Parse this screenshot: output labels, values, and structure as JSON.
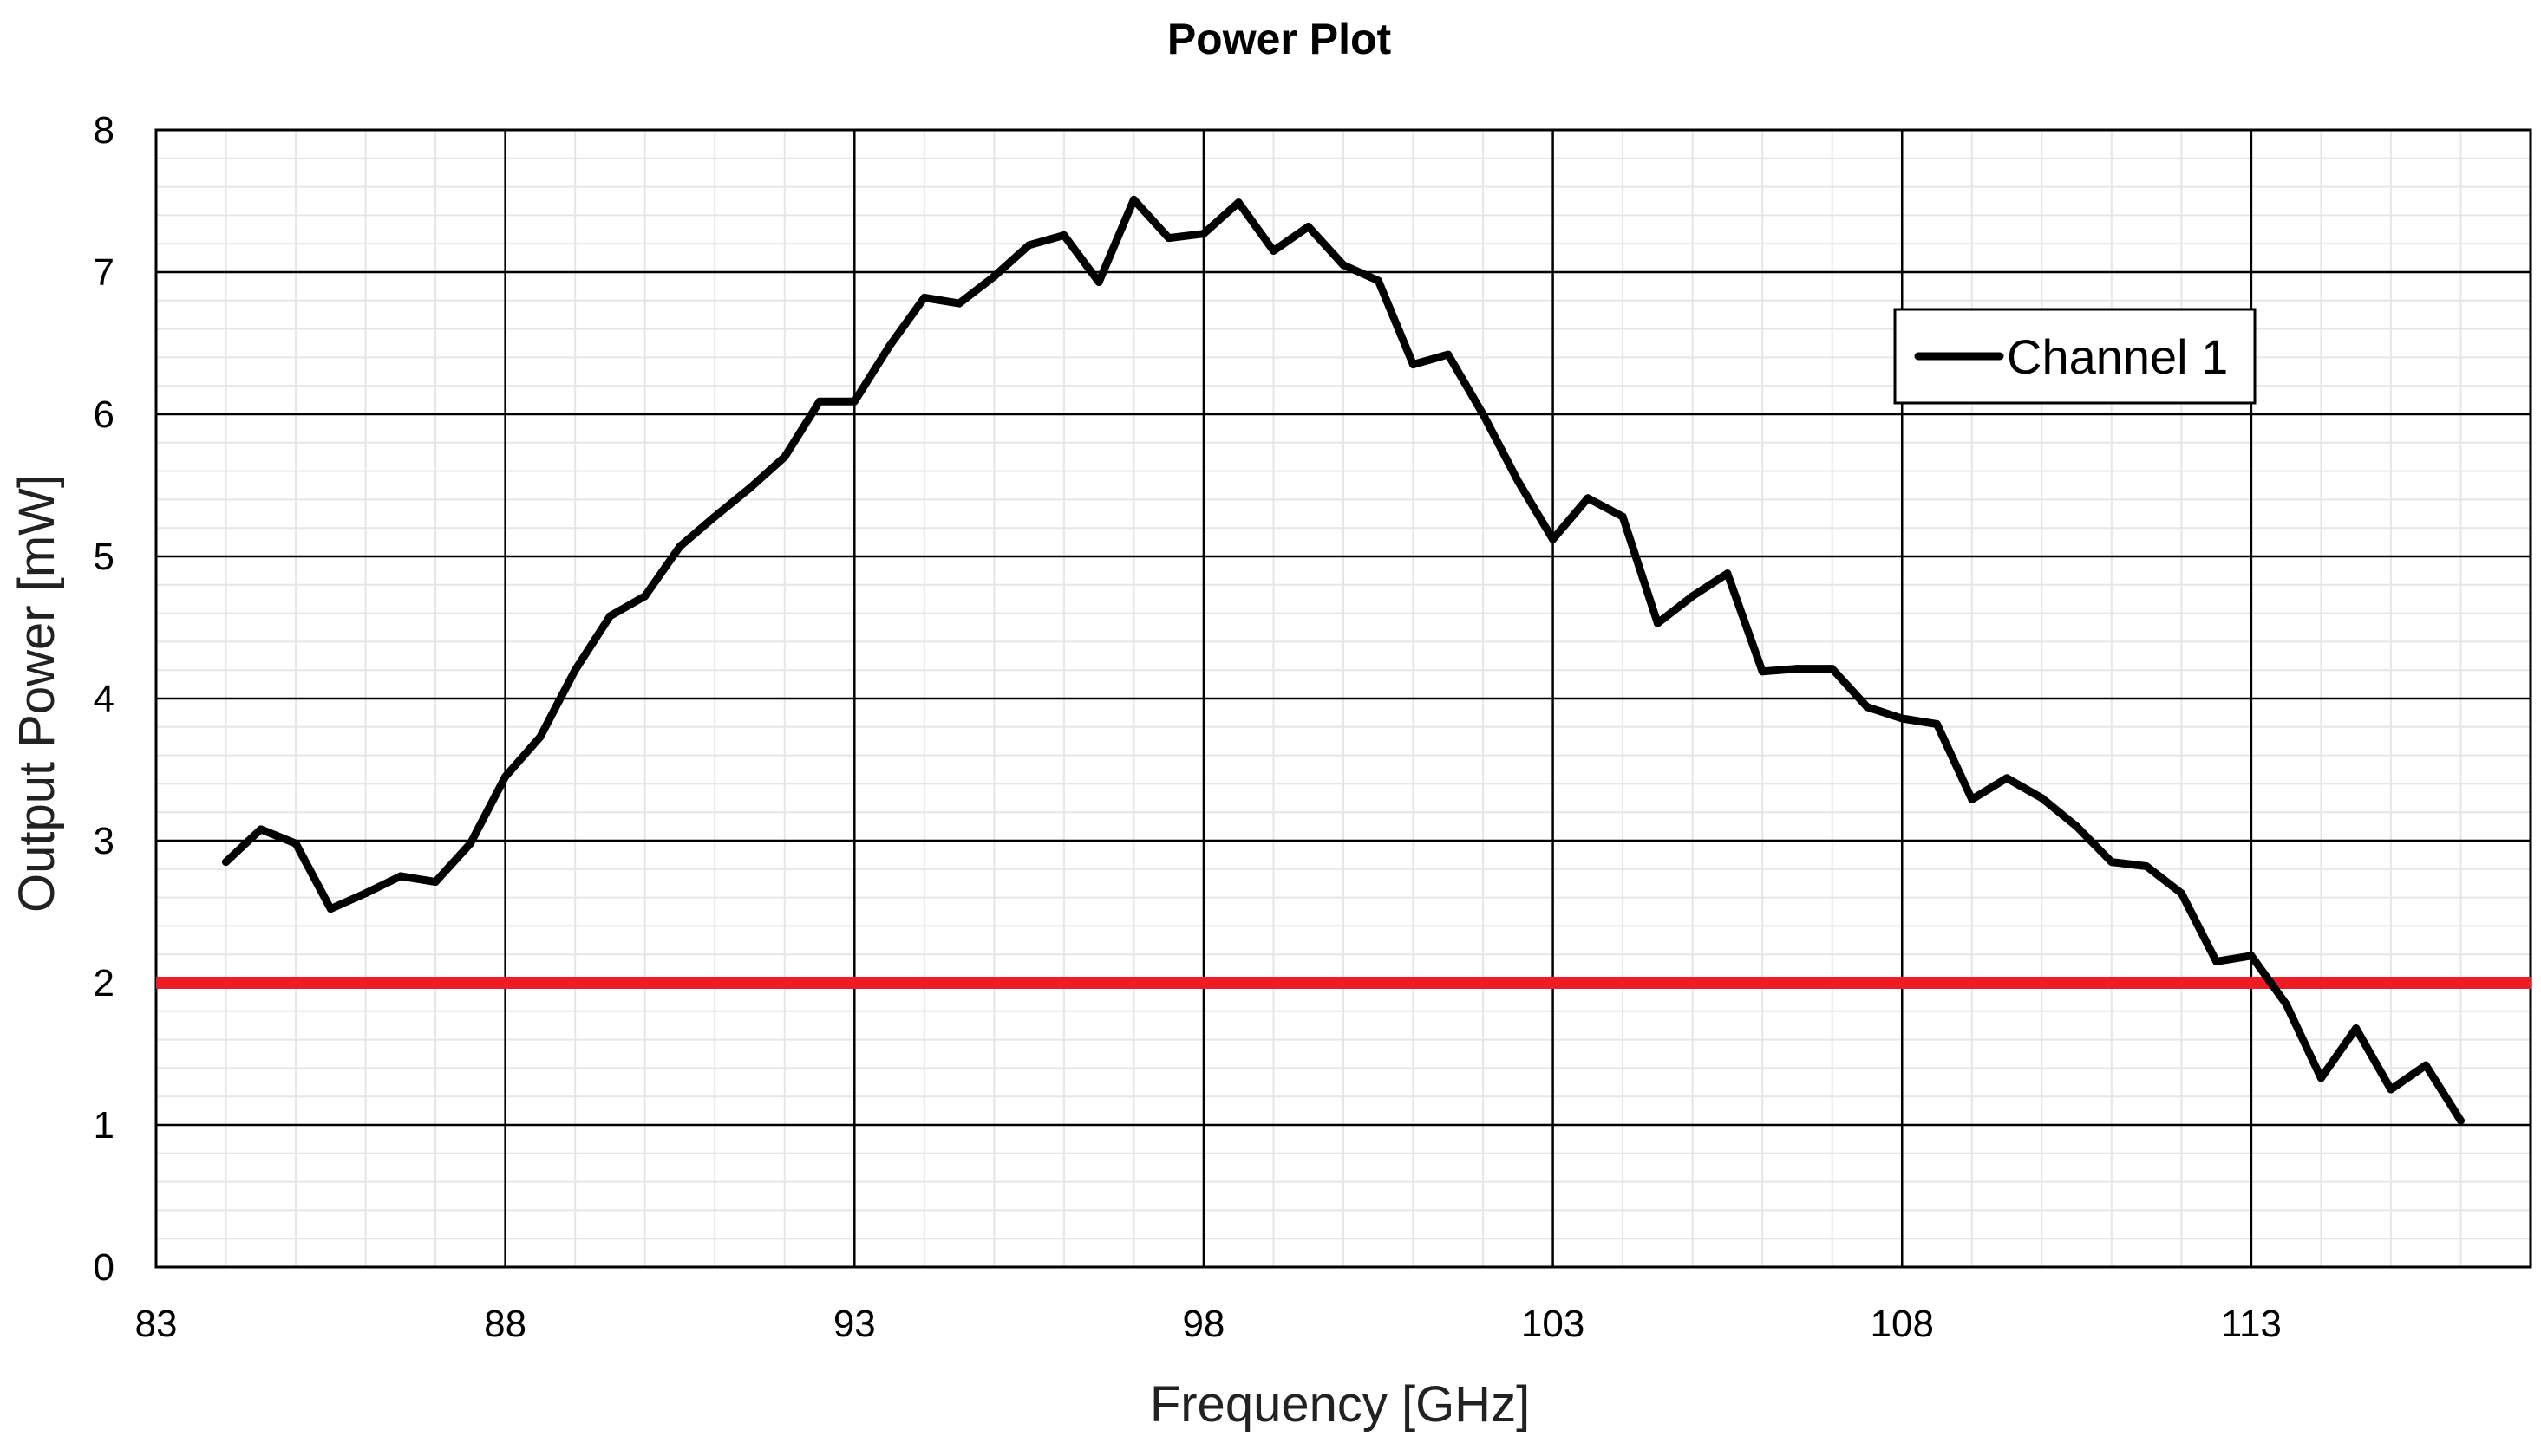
{
  "chart_data": {
    "type": "line",
    "title": "Power Plot",
    "xlabel": "Frequency [GHz]",
    "ylabel": "Output Power [mW]",
    "xlim": [
      83,
      117
    ],
    "ylim": [
      0,
      8
    ],
    "x_ticks": [
      "83",
      "88",
      "93",
      "98",
      "103",
      "108",
      "113"
    ],
    "y_ticks": [
      "0",
      "1",
      "2",
      "3",
      "4",
      "5",
      "6",
      "7",
      "8"
    ],
    "grid": true,
    "legend_position": "top-right",
    "series": [
      {
        "name": "Channel 1",
        "color": "#000000",
        "x": [
          84,
          84.5,
          85,
          85.5,
          86,
          86.5,
          87,
          87.5,
          88,
          88.5,
          89,
          89.5,
          90,
          90.5,
          91,
          91.5,
          92,
          92.5,
          93,
          93.5,
          94,
          94.5,
          95,
          95.5,
          96,
          96.5,
          97,
          97.5,
          98,
          98.5,
          99,
          99.5,
          100,
          100.5,
          101,
          101.5,
          102,
          102.5,
          103,
          103.5,
          104,
          104.5,
          105,
          105.5,
          106,
          106.5,
          107,
          107.5,
          108,
          108.5,
          109,
          109.5,
          110,
          110.5,
          111,
          111.5,
          112,
          112.5,
          113,
          113.5,
          114,
          114.5,
          115,
          115.5,
          116
        ],
        "y": [
          2.85,
          3.08,
          2.98,
          2.52,
          2.63,
          2.75,
          2.71,
          2.98,
          3.45,
          3.73,
          4.2,
          4.58,
          4.72,
          5.07,
          5.28,
          5.48,
          5.7,
          6.09,
          6.09,
          6.48,
          6.82,
          6.78,
          6.97,
          7.19,
          7.26,
          6.93,
          7.51,
          7.24,
          7.27,
          7.49,
          7.15,
          7.32,
          7.05,
          6.94,
          6.35,
          6.42,
          6.0,
          5.53,
          5.12,
          5.41,
          5.28,
          4.53,
          4.72,
          4.88,
          4.19,
          4.21,
          4.21,
          3.94,
          3.86,
          3.82,
          3.29,
          3.44,
          3.3,
          3.1,
          2.85,
          2.82,
          2.63,
          2.15,
          2.19,
          1.85,
          1.33,
          1.68,
          1.25,
          1.42,
          1.03
        ]
      }
    ],
    "threshold": {
      "y": 2,
      "color": "#ee1c24"
    }
  }
}
